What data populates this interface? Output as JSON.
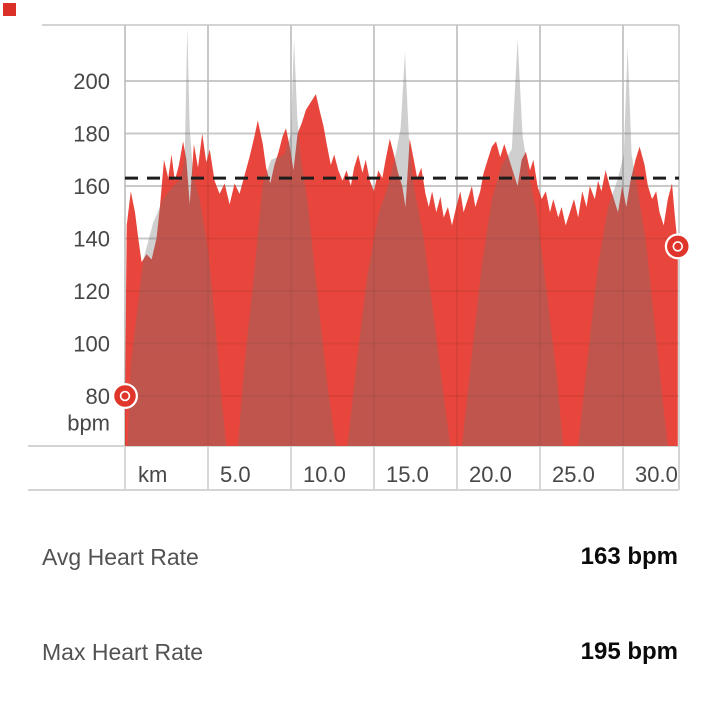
{
  "decor": {
    "corner_square_color": "#d93128"
  },
  "chart_data": {
    "type": "area",
    "x_axis": {
      "unit_label": "km",
      "tick_labels": [
        "5.0",
        "10.0",
        "15.0",
        "20.0",
        "25.0",
        "30.0"
      ],
      "tick_values_km": [
        5,
        10,
        15,
        20,
        25,
        30
      ],
      "gridlines_km": [
        0,
        5,
        10,
        15,
        20,
        25,
        30
      ],
      "max_km": 33.4
    },
    "y_axis": {
      "unit_label": "bpm",
      "tick_labels": [
        "200",
        "180",
        "160",
        "140",
        "120",
        "100",
        "80"
      ],
      "tick_values_bpm": [
        200,
        180,
        160,
        140,
        120,
        100,
        80
      ]
    },
    "avg_line_bpm": 163,
    "marker_color": "#df352b",
    "grid_color": "#d8d8d8",
    "avg_line_color": "#1d1d1d",
    "series": [
      {
        "name": "heart-rate",
        "color": "#e8463c",
        "opacity": 1,
        "points": [
          [
            0,
            80
          ],
          [
            0.1,
            145
          ],
          [
            0.35,
            158
          ],
          [
            0.6,
            150
          ],
          [
            0.8,
            140
          ],
          [
            1.0,
            131
          ],
          [
            1.3,
            134
          ],
          [
            1.6,
            132
          ],
          [
            1.9,
            140
          ],
          [
            2.1,
            152
          ],
          [
            2.35,
            170
          ],
          [
            2.6,
            163
          ],
          [
            2.8,
            172
          ],
          [
            3.0,
            162
          ],
          [
            3.25,
            168
          ],
          [
            3.5,
            177
          ],
          [
            3.7,
            170
          ],
          [
            3.9,
            153
          ],
          [
            4.15,
            176
          ],
          [
            4.4,
            167
          ],
          [
            4.65,
            180
          ],
          [
            4.9,
            169
          ],
          [
            5.1,
            174
          ],
          [
            5.4,
            162
          ],
          [
            5.7,
            157
          ],
          [
            6.0,
            161
          ],
          [
            6.3,
            153
          ],
          [
            6.6,
            161
          ],
          [
            6.9,
            157
          ],
          [
            7.2,
            164
          ],
          [
            7.5,
            171
          ],
          [
            7.8,
            179
          ],
          [
            8.0,
            185
          ],
          [
            8.3,
            176
          ],
          [
            8.5,
            167
          ],
          [
            8.75,
            161
          ],
          [
            9.0,
            168
          ],
          [
            9.25,
            173
          ],
          [
            9.5,
            179
          ],
          [
            9.7,
            182
          ],
          [
            9.95,
            174
          ],
          [
            10.15,
            166
          ],
          [
            10.4,
            180
          ],
          [
            10.65,
            184
          ],
          [
            10.9,
            189
          ],
          [
            11.2,
            192
          ],
          [
            11.5,
            195
          ],
          [
            11.75,
            188
          ],
          [
            11.95,
            183
          ],
          [
            12.15,
            176
          ],
          [
            12.4,
            168
          ],
          [
            12.6,
            172
          ],
          [
            12.85,
            166
          ],
          [
            13.1,
            162
          ],
          [
            13.35,
            166
          ],
          [
            13.6,
            160
          ],
          [
            13.8,
            167
          ],
          [
            14.05,
            172
          ],
          [
            14.3,
            165
          ],
          [
            14.5,
            170
          ],
          [
            14.75,
            162
          ],
          [
            15.0,
            158
          ],
          [
            15.25,
            166
          ],
          [
            15.5,
            163
          ],
          [
            15.7,
            170
          ],
          [
            15.95,
            178
          ],
          [
            16.2,
            172
          ],
          [
            16.45,
            165
          ],
          [
            16.7,
            160
          ],
          [
            16.9,
            152
          ],
          [
            17.15,
            178
          ],
          [
            17.4,
            170
          ],
          [
            17.6,
            163
          ],
          [
            17.85,
            167
          ],
          [
            18.1,
            157
          ],
          [
            18.3,
            152
          ],
          [
            18.5,
            158
          ],
          [
            18.75,
            150
          ],
          [
            19.0,
            156
          ],
          [
            19.2,
            148
          ],
          [
            19.45,
            152
          ],
          [
            19.7,
            145
          ],
          [
            19.95,
            152
          ],
          [
            20.2,
            158
          ],
          [
            20.4,
            150
          ],
          [
            20.65,
            155
          ],
          [
            20.9,
            160
          ],
          [
            21.1,
            152
          ],
          [
            21.4,
            158
          ],
          [
            21.6,
            165
          ],
          [
            21.85,
            170
          ],
          [
            22.1,
            175
          ],
          [
            22.35,
            177
          ],
          [
            22.6,
            171
          ],
          [
            22.85,
            176
          ],
          [
            23.15,
            170
          ],
          [
            23.4,
            165
          ],
          [
            23.65,
            160
          ],
          [
            23.9,
            170
          ],
          [
            24.15,
            173
          ],
          [
            24.4,
            166
          ],
          [
            24.6,
            170
          ],
          [
            24.85,
            160
          ],
          [
            25.1,
            155
          ],
          [
            25.35,
            158
          ],
          [
            25.6,
            150
          ],
          [
            25.8,
            155
          ],
          [
            26.1,
            148
          ],
          [
            26.3,
            152
          ],
          [
            26.55,
            145
          ],
          [
            26.8,
            150
          ],
          [
            27.05,
            155
          ],
          [
            27.3,
            148
          ],
          [
            27.55,
            158
          ],
          [
            27.8,
            152
          ],
          [
            28.0,
            160
          ],
          [
            28.3,
            155
          ],
          [
            28.5,
            162
          ],
          [
            28.7,
            158
          ],
          [
            28.95,
            166
          ],
          [
            29.2,
            160
          ],
          [
            29.45,
            155
          ],
          [
            29.7,
            150
          ],
          [
            29.95,
            160
          ],
          [
            30.2,
            152
          ],
          [
            30.45,
            162
          ],
          [
            30.75,
            170
          ],
          [
            31.0,
            175
          ],
          [
            31.3,
            168
          ],
          [
            31.5,
            160
          ],
          [
            31.75,
            155
          ],
          [
            32.0,
            158
          ],
          [
            32.2,
            150
          ],
          [
            32.45,
            145
          ],
          [
            32.7,
            155
          ],
          [
            32.95,
            161
          ],
          [
            33.1,
            150
          ],
          [
            33.3,
            137
          ]
        ]
      },
      {
        "name": "background-profile",
        "color": "#737373",
        "opacity": 0.34,
        "points": [
          [
            0.15,
            61
          ],
          [
            0.35,
            92
          ],
          [
            1.1,
            132
          ],
          [
            1.7,
            146
          ],
          [
            2.3,
            155
          ],
          [
            2.9,
            160
          ],
          [
            3.4,
            163
          ],
          [
            3.6,
            172
          ],
          [
            3.75,
            221
          ],
          [
            3.9,
            182
          ],
          [
            4.1,
            164
          ],
          [
            4.5,
            155
          ],
          [
            5.0,
            136
          ],
          [
            5.4,
            110
          ],
          [
            5.8,
            80
          ],
          [
            6.1,
            61
          ],
          [
            6.8,
            61
          ],
          [
            7.2,
            92
          ],
          [
            7.8,
            128
          ],
          [
            8.3,
            161
          ],
          [
            8.8,
            170
          ],
          [
            9.6,
            172
          ],
          [
            10.0,
            180
          ],
          [
            10.18,
            216
          ],
          [
            10.38,
            186
          ],
          [
            10.6,
            170
          ],
          [
            11.0,
            154
          ],
          [
            11.6,
            118
          ],
          [
            12.2,
            84
          ],
          [
            12.7,
            61
          ],
          [
            13.4,
            61
          ],
          [
            14.0,
            95
          ],
          [
            14.6,
            126
          ],
          [
            15.3,
            150
          ],
          [
            15.9,
            161
          ],
          [
            16.3,
            172
          ],
          [
            16.6,
            182
          ],
          [
            16.87,
            211
          ],
          [
            17.1,
            178
          ],
          [
            17.4,
            160
          ],
          [
            18.0,
            140
          ],
          [
            18.6,
            110
          ],
          [
            19.2,
            80
          ],
          [
            19.6,
            61
          ],
          [
            20.3,
            61
          ],
          [
            20.9,
            96
          ],
          [
            21.5,
            130
          ],
          [
            22.1,
            155
          ],
          [
            22.7,
            168
          ],
          [
            23.3,
            174
          ],
          [
            23.65,
            216
          ],
          [
            23.95,
            179
          ],
          [
            24.3,
            165
          ],
          [
            24.8,
            150
          ],
          [
            25.4,
            120
          ],
          [
            26.0,
            88
          ],
          [
            26.4,
            61
          ],
          [
            27.3,
            61
          ],
          [
            27.9,
            96
          ],
          [
            28.5,
            130
          ],
          [
            29.1,
            152
          ],
          [
            29.7,
            163
          ],
          [
            30.05,
            172
          ],
          [
            30.28,
            213
          ],
          [
            30.52,
            172
          ],
          [
            30.9,
            158
          ],
          [
            31.4,
            138
          ],
          [
            31.9,
            108
          ],
          [
            32.4,
            78
          ],
          [
            32.7,
            61
          ],
          [
            33.3,
            61
          ]
        ]
      }
    ],
    "markers": [
      {
        "position": "start",
        "km": 0,
        "bpm": 80
      },
      {
        "position": "end",
        "km": 33.3,
        "bpm": 137
      }
    ]
  },
  "stats": [
    {
      "label": "Avg Heart Rate",
      "value": "163 bpm"
    },
    {
      "label": "Max Heart Rate",
      "value": "195 bpm"
    }
  ]
}
